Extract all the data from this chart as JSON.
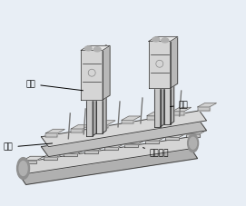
{
  "bg_color": "#e8eef5",
  "fig_bg": "#e8eef5",
  "labels": {
    "qi_gang": "气缸",
    "dang_gan": "挡杆",
    "tuo_ban": "托板",
    "shu_song": "输送板链"
  },
  "font_size": 6.5,
  "font_color": "#000000",
  "line_color": "#333333",
  "light_gray": "#e0e0e0",
  "mid_gray": "#c0c0c0",
  "dark_gray": "#888888"
}
